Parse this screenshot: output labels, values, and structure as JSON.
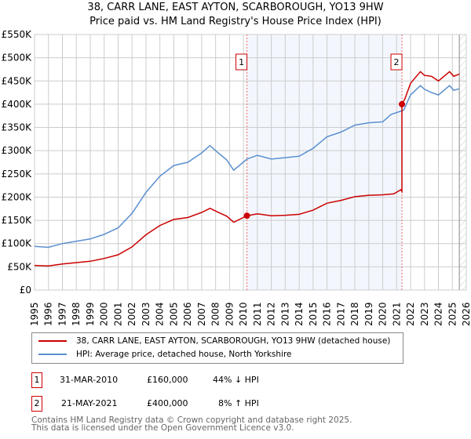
{
  "chart_data": {
    "type": "line",
    "title": "38, CARR LANE, EAST AYTON, SCARBOROUGH, YO13 9HW",
    "subtitle": "Price paid vs. HM Land Registry's House Price Index (HPI)",
    "xlim": [
      1995,
      2026
    ],
    "ylim": [
      0,
      550000
    ],
    "x_ticks": [
      "1995",
      "1996",
      "1997",
      "1998",
      "1999",
      "2000",
      "2001",
      "2002",
      "2003",
      "2004",
      "2005",
      "2006",
      "2007",
      "2008",
      "2009",
      "2010",
      "2011",
      "2012",
      "2013",
      "2014",
      "2015",
      "2016",
      "2017",
      "2018",
      "2019",
      "2020",
      "2021",
      "2022",
      "2023",
      "2024",
      "2025",
      "2026"
    ],
    "y_ticks": [
      {
        "v": 0,
        "label": "£0"
      },
      {
        "v": 50000,
        "label": "£50K"
      },
      {
        "v": 100000,
        "label": "£100K"
      },
      {
        "v": 150000,
        "label": "£150K"
      },
      {
        "v": 200000,
        "label": "£200K"
      },
      {
        "v": 250000,
        "label": "£250K"
      },
      {
        "v": 300000,
        "label": "£300K"
      },
      {
        "v": 350000,
        "label": "£350K"
      },
      {
        "v": 400000,
        "label": "£400K"
      },
      {
        "v": 450000,
        "label": "£450K"
      },
      {
        "v": 500000,
        "label": "£500K"
      },
      {
        "v": 550000,
        "label": "£550K"
      }
    ],
    "grid": true,
    "series": [
      {
        "name": "38, CARR LANE, EAST AYTON, SCARBOROUGH, YO13 9HW (detached house)",
        "color": "#cc0000",
        "x": [
          1995,
          1996,
          1997,
          1998,
          1999,
          2000,
          2001,
          2002,
          2003,
          2004,
          2005,
          2006,
          2007,
          2007.6,
          2008,
          2008.8,
          2009.3,
          2010.25,
          2011,
          2012,
          2013,
          2014,
          2015,
          2016,
          2017,
          2018,
          2019,
          2020,
          2020.8,
          2021.3,
          2021.38,
          2021.38,
          2021.6,
          2022,
          2022.7,
          2023,
          2023.5,
          2024,
          2024.8,
          2025.1,
          2025.5
        ],
        "y": [
          53000,
          52000,
          56000,
          59000,
          62000,
          68000,
          76000,
          93000,
          119000,
          139000,
          152000,
          156000,
          167000,
          176000,
          170000,
          159000,
          146000,
          160000,
          164000,
          160000,
          161000,
          163000,
          172000,
          187000,
          193000,
          201000,
          204000,
          205000,
          207000,
          216000,
          212000,
          400000,
          412000,
          445000,
          470000,
          462000,
          460000,
          450000,
          470000,
          460000,
          465000
        ]
      },
      {
        "name": "HPI: Average price, detached house, North Yorkshire",
        "color": "#5b8fd0",
        "x": [
          1995,
          1996,
          1997,
          1998,
          1999,
          2000,
          2001,
          2002,
          2003,
          2004,
          2005,
          2006,
          2007,
          2007.6,
          2008,
          2008.8,
          2009.3,
          2010.25,
          2011,
          2012,
          2013,
          2014,
          2015,
          2016,
          2017,
          2018,
          2019,
          2020,
          2020.6,
          2021,
          2021.5,
          2022,
          2022.7,
          2023,
          2023.5,
          2024,
          2024.8,
          2025.1,
          2025.5
        ],
        "y": [
          94000,
          92000,
          100000,
          105000,
          110000,
          120000,
          134000,
          165000,
          210000,
          245000,
          268000,
          275000,
          295000,
          311000,
          300000,
          280000,
          258000,
          282000,
          290000,
          282000,
          285000,
          288000,
          305000,
          330000,
          340000,
          355000,
          360000,
          362000,
          378000,
          382000,
          387000,
          420000,
          440000,
          432000,
          425000,
          420000,
          440000,
          430000,
          433000
        ]
      }
    ],
    "sales": [
      {
        "n": "1",
        "x": 2010.25,
        "y": 160000,
        "date": "31-MAR-2010",
        "price": "£160,000",
        "hpi": "44% ↓ HPI"
      },
      {
        "n": "2",
        "x": 2021.38,
        "y": 400000,
        "date": "21-MAY-2021",
        "price": "£400,000",
        "hpi": "8% ↑ HPI"
      }
    ],
    "forecast_start": 2025.5,
    "legend": "bottom"
  },
  "footer": {
    "line1": "Contains HM Land Registry data © Crown copyright and database right 2025.",
    "line2": "This data is licensed under the Open Government Licence v3.0."
  }
}
